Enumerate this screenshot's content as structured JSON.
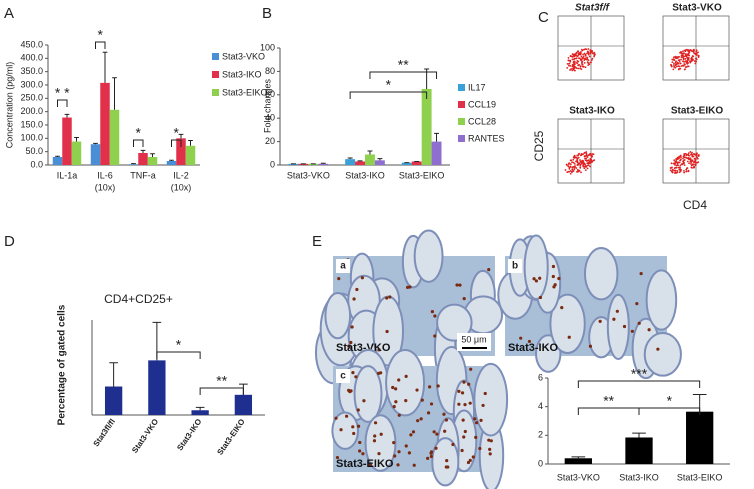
{
  "panel_labels": [
    "A",
    "B",
    "C",
    "D",
    "E"
  ],
  "flow_cytometry": {
    "titles": [
      "Stat3f/f",
      "Stat3-VKO",
      "Stat3-IKO",
      "Stat3-EIKO"
    ],
    "ylabel": "CD25",
    "xlabel": "CD4"
  },
  "histology": {
    "panels": [
      {
        "letter": "a",
        "caption": "Stat3-VKO"
      },
      {
        "letter": "b",
        "caption": "Stat3-IKO"
      },
      {
        "letter": "c",
        "caption": "Stat3-EIKO"
      }
    ],
    "scale_bar": "50 μm"
  },
  "chart_data": [
    {
      "type": "bar",
      "ylabel": "Concentration (pg/ml)",
      "categories": [
        "IL-1a",
        "IL-6",
        "TNF-a",
        "IL-2"
      ],
      "category_sublabels": [
        null,
        "(10x)",
        null,
        "(10x)"
      ],
      "series": [
        {
          "name": "Stat3-VKO",
          "color": "#4a8fd6",
          "values": [
            30,
            78,
            3,
            15
          ],
          "errors": [
            3,
            3,
            2,
            3
          ]
        },
        {
          "name": "Stat3-IKO",
          "color": "#e0304a",
          "values": [
            178,
            308,
            45,
            100
          ],
          "errors": [
            12,
            115,
            10,
            15
          ]
        },
        {
          "name": "Stat3-EIKO",
          "color": "#8fd14f",
          "values": [
            88,
            207,
            30,
            72
          ],
          "errors": [
            15,
            120,
            12,
            20
          ]
        }
      ],
      "ylim": [
        0,
        450
      ],
      "yticks": [
        {
          "value": 0,
          "label": "0.0"
        },
        {
          "value": 50,
          "label": "50.0"
        },
        {
          "value": 100,
          "label": "100.0"
        },
        {
          "value": 150,
          "label": "150.0"
        },
        {
          "value": 200,
          "label": "200.0"
        },
        {
          "value": 250,
          "label": "250.0"
        },
        {
          "value": 300,
          "label": "300.0"
        },
        {
          "value": 350,
          "label": "350.0"
        },
        {
          "value": 400,
          "label": "400.0"
        },
        {
          "value": 450,
          "label": "450.0"
        }
      ],
      "annotations": [
        "* *",
        "*",
        "*",
        "*"
      ]
    },
    {
      "type": "bar",
      "ylabel": "Fold changes",
      "categories": [
        "Stat3-VKO",
        "Stat3-IKO",
        "Stat3-EIKO"
      ],
      "series": [
        {
          "name": "IL17",
          "color": "#3aa0d8",
          "values": [
            1,
            5,
            2
          ],
          "errors": [
            0,
            1,
            0
          ]
        },
        {
          "name": "CCL19",
          "color": "#e0304a",
          "values": [
            1,
            3,
            3
          ],
          "errors": [
            0,
            0.5,
            0
          ]
        },
        {
          "name": "CCL28",
          "color": "#8fd14f",
          "values": [
            1,
            9,
            65
          ],
          "errors": [
            0,
            3,
            17
          ]
        },
        {
          "name": "RANTES",
          "color": "#8e6fd0",
          "values": [
            1,
            4,
            20
          ],
          "errors": [
            0.5,
            1.5,
            7
          ]
        }
      ],
      "ylim": [
        0,
        100
      ],
      "yticks": [
        0,
        20,
        40,
        60,
        80,
        100
      ],
      "annotations": [
        "**",
        "*"
      ]
    },
    {
      "type": "bar",
      "title": "CD4+CD25+",
      "ylabel": "Percentage of gated cells",
      "categories": [
        "Stat3fl/fl",
        "Stat3-VKO",
        "Stat3-IKO",
        "Stat3-EIKO"
      ],
      "values": [
        1.2,
        2.3,
        0.2,
        0.85
      ],
      "errors": [
        1.0,
        1.6,
        0.12,
        0.45
      ],
      "color": "#1f2f8f",
      "ylim": [
        0,
        4
      ],
      "annotations": [
        "*",
        "**"
      ]
    },
    {
      "type": "bar",
      "categories": [
        "Stat3-VKO",
        "Stat3-IKO",
        "Stat3-EIKO"
      ],
      "values": [
        0.4,
        1.85,
        3.65
      ],
      "errors": [
        0.1,
        0.3,
        1.2
      ],
      "color": "#000000",
      "ylim": [
        0,
        6
      ],
      "yticks": [
        0,
        2,
        4,
        6
      ],
      "annotations": [
        "***",
        "**",
        "*"
      ]
    }
  ]
}
